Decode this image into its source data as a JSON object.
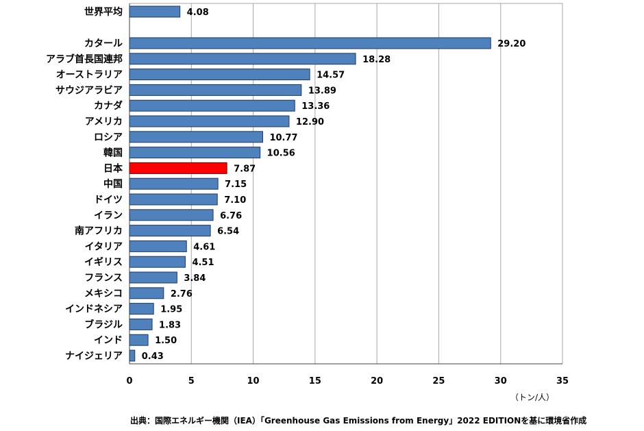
{
  "chart_data": {
    "type": "bar",
    "orientation": "horizontal",
    "categories": [
      "世界平均",
      "カタール",
      "アラブ首長国連邦",
      "オーストラリア",
      "サウジアラビア",
      "カナダ",
      "アメリカ",
      "ロシア",
      "韓国",
      "日本",
      "中国",
      "ドイツ",
      "イラン",
      "南アフリカ",
      "イタリア",
      "イギリス",
      "フランス",
      "メキシコ",
      "インドネシア",
      "ブラジル",
      "インド",
      "ナイジェリア"
    ],
    "values": [
      4.08,
      29.2,
      18.28,
      14.57,
      13.89,
      13.36,
      12.9,
      10.77,
      10.56,
      7.87,
      7.15,
      7.1,
      6.76,
      6.54,
      4.61,
      4.51,
      3.84,
      2.76,
      1.95,
      1.83,
      1.5,
      0.43
    ],
    "value_labels": [
      "4.08",
      "29.20",
      "18.28",
      "14.57",
      "13.89",
      "13.36",
      "12.90",
      "10.77",
      "10.56",
      "7.87",
      "7.15",
      "7.10",
      "6.76",
      "6.54",
      "4.61",
      "4.51",
      "3.84",
      "2.76",
      "1.95",
      "1.83",
      "1.50",
      "0.43"
    ],
    "highlight": "日本",
    "xlim": [
      0,
      35
    ],
    "xticks": [
      0,
      5,
      10,
      15,
      20,
      25,
      30,
      35
    ],
    "unit_label": "（トン/人）",
    "grid": true
  },
  "colors": {
    "bar": "#4f81bd",
    "bar_border": "#1f3864",
    "highlight": "#ff0000",
    "grid": "#a6a6a6"
  },
  "source": "出典：国際エネルギー機関（IEA）「Greenhouse Gas Emissions from Energy」2022 EDITIONを基に環境省作成"
}
